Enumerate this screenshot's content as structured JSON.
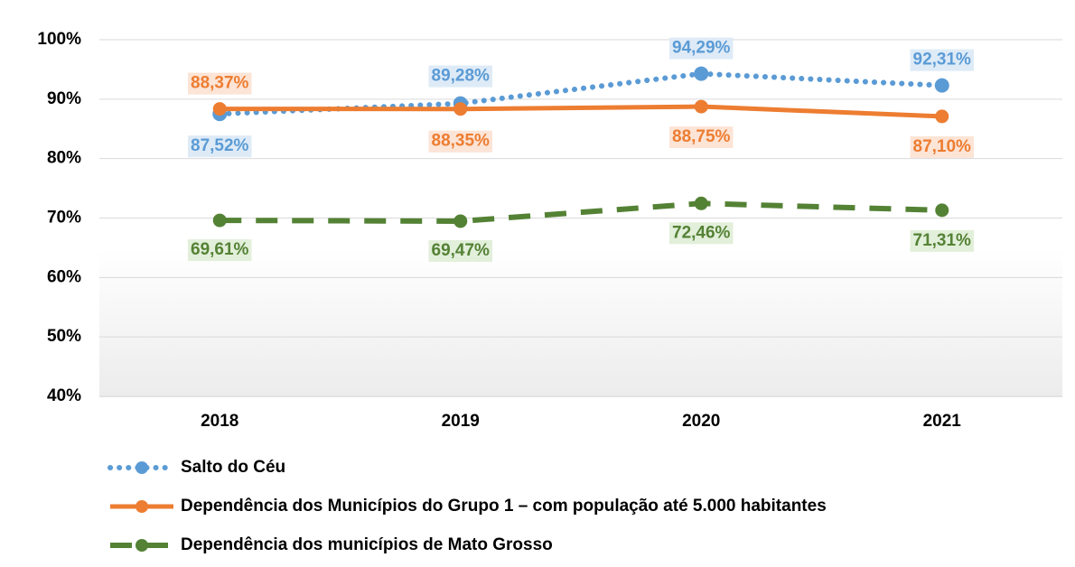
{
  "chart_data": {
    "type": "line",
    "categories": [
      "2018",
      "2019",
      "2020",
      "2021"
    ],
    "series": [
      {
        "name": "Salto do Céu",
        "color": "#5b9bd5",
        "style": "dotted",
        "values": [
          87.52,
          89.28,
          94.29,
          92.31
        ],
        "value_labels": [
          "87,52%",
          "89,28%",
          "94,29%",
          "92,31%"
        ]
      },
      {
        "name": "Dependência dos Municípios do Grupo 1 – com população até 5.000 habitantes",
        "color": "#ed7d31",
        "style": "solid",
        "values": [
          88.37,
          88.35,
          88.75,
          87.1
        ],
        "value_labels": [
          "88,37%",
          "88,35%",
          "88,75%",
          "87,10%"
        ]
      },
      {
        "name": "Dependência dos municípios de Mato Grosso",
        "color": "#548235",
        "style": "dashed",
        "values": [
          69.61,
          69.47,
          72.46,
          71.31
        ],
        "value_labels": [
          "69,61%",
          "69,47%",
          "72,46%",
          "71,31%"
        ]
      }
    ],
    "ylim": [
      40,
      100
    ],
    "yticks": [
      {
        "value": 40,
        "label": "40%"
      },
      {
        "value": 50,
        "label": "50%"
      },
      {
        "value": 60,
        "label": "60%"
      },
      {
        "value": 70,
        "label": "70%"
      },
      {
        "value": 80,
        "label": "80%"
      },
      {
        "value": 90,
        "label": "90%"
      },
      {
        "value": 100,
        "label": "100%"
      }
    ],
    "grid": true
  }
}
